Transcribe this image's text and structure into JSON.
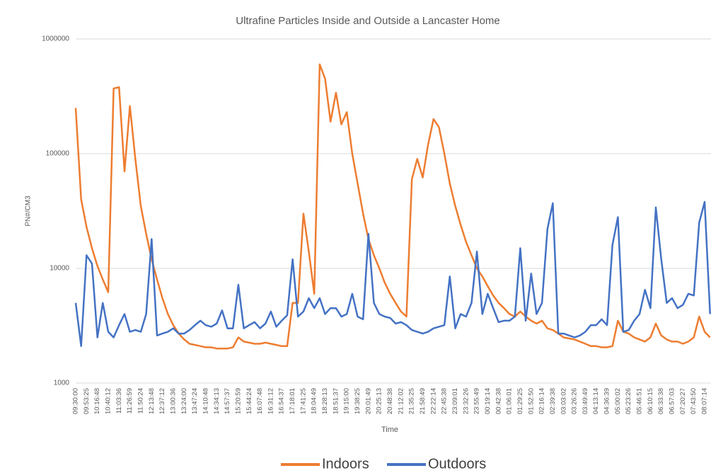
{
  "chart_data": {
    "type": "line",
    "title": "Ultrafine Particles Inside and Outside a Lancaster Home",
    "x_label": "Time",
    "y_label": "PN#/CM3",
    "log_scale": true,
    "grid": true,
    "legend": "bottom",
    "ylim": [
      1000,
      1000000
    ],
    "yticks": [
      1000,
      10000,
      100000,
      1000000
    ],
    "categories": [
      "09:30:00",
      null,
      "09:53:25",
      null,
      "10:16:48",
      null,
      "10:40:12",
      null,
      "11:03:36",
      null,
      "11:26:59",
      null,
      "11:50:24",
      null,
      "12:13:48",
      null,
      "12:37:12",
      null,
      "13:00:36",
      null,
      "13:24:00",
      null,
      "13:47:24",
      null,
      "14:10:48",
      null,
      "14:34:13",
      null,
      "14:57:37",
      null,
      "15:20:59",
      null,
      "15:44:24",
      null,
      "16:07:48",
      null,
      "16:31:12",
      null,
      "16:54:37",
      null,
      "17:18:01",
      null,
      "17:41:25",
      null,
      "18:04:49",
      null,
      "18:28:13",
      null,
      "18:51:37",
      null,
      "19:15:00",
      null,
      "19:38:25",
      null,
      "20:01:49",
      null,
      "20:25:13",
      null,
      "20:48:38",
      null,
      "21:12:02",
      null,
      "21:35:25",
      null,
      "21:58:49",
      null,
      "22:22:14",
      null,
      "22:45:38",
      null,
      "23:09:01",
      null,
      "23:32:26",
      null,
      "23:55:49",
      null,
      "00:19:14",
      null,
      "00:42:38",
      null,
      "01:06:01",
      null,
      "01:29:25",
      null,
      "01:52:50",
      null,
      "02:16:14",
      null,
      "02:39:38",
      null,
      "03:03:02",
      null,
      "03:26:26",
      null,
      "03:49:49",
      null,
      "04:13:14",
      null,
      "04:36:39",
      null,
      "05:00:02",
      null,
      "05:23:26",
      null,
      "05:46:51",
      null,
      "06:10:15",
      null,
      "06:33:38",
      null,
      "06:57:03",
      null,
      "07:20:27",
      null,
      "07:43:50",
      null,
      "08:07:14",
      null
    ],
    "series": [
      {
        "name": "Indoors",
        "color": "#ed7d31",
        "values": [
          250000,
          40000,
          23000,
          15000,
          10500,
          8000,
          6200,
          370000,
          380000,
          70000,
          260000,
          90000,
          35000,
          20000,
          12000,
          8000,
          5500,
          4000,
          3200,
          2700,
          2400,
          2200,
          2150,
          2100,
          2050,
          2050,
          2000,
          2000,
          2000,
          2050,
          2500,
          2300,
          2250,
          2200,
          2200,
          2250,
          2200,
          2150,
          2100,
          2100,
          5000,
          5000,
          30000,
          14000,
          6000,
          600000,
          450000,
          190000,
          340000,
          180000,
          230000,
          100000,
          55000,
          30000,
          18000,
          13000,
          10000,
          7500,
          6000,
          5000,
          4200,
          3800,
          60000,
          90000,
          62000,
          120000,
          200000,
          170000,
          100000,
          55000,
          35000,
          24000,
          17000,
          13000,
          10000,
          8500,
          7000,
          5800,
          5000,
          4500,
          4000,
          3800,
          4200,
          3800,
          3500,
          3300,
          3500,
          3000,
          2900,
          2700,
          2500,
          2450,
          2400,
          2300,
          2200,
          2100,
          2100,
          2050,
          2050,
          2100,
          3500,
          2800,
          2700,
          2500,
          2400,
          2300,
          2500,
          3300,
          2600,
          2400,
          2300,
          2300,
          2200,
          2300,
          2500,
          3800,
          2800,
          2500
        ]
      },
      {
        "name": "Outdoors",
        "color": "#4472c4",
        "values": [
          5000,
          2100,
          13000,
          11000,
          2500,
          5000,
          2800,
          2500,
          3200,
          4000,
          2800,
          2900,
          2800,
          4000,
          18000,
          2600,
          2700,
          2800,
          3000,
          2700,
          2700,
          2900,
          3200,
          3500,
          3200,
          3100,
          3300,
          4300,
          3000,
          3000,
          7200,
          3000,
          3200,
          3400,
          3000,
          3300,
          4200,
          3100,
          3500,
          3900,
          12000,
          3800,
          4200,
          5500,
          4500,
          5500,
          4000,
          4500,
          4500,
          3800,
          4000,
          6000,
          3800,
          3600,
          20000,
          5000,
          4000,
          3800,
          3700,
          3300,
          3400,
          3200,
          2900,
          2800,
          2700,
          2800,
          3000,
          3100,
          3200,
          8500,
          3000,
          4000,
          3800,
          5000,
          14000,
          4000,
          6000,
          4500,
          3400,
          3500,
          3500,
          3800,
          15000,
          3500,
          9000,
          4000,
          5000,
          22000,
          37000,
          2700,
          2700,
          2600,
          2500,
          2600,
          2800,
          3200,
          3200,
          3600,
          3200,
          16000,
          28000,
          2800,
          2900,
          3500,
          4000,
          6500,
          4500,
          34000,
          12000,
          5000,
          5500,
          4500,
          4800,
          6000,
          5800,
          25000,
          38000,
          4000
        ]
      }
    ]
  }
}
